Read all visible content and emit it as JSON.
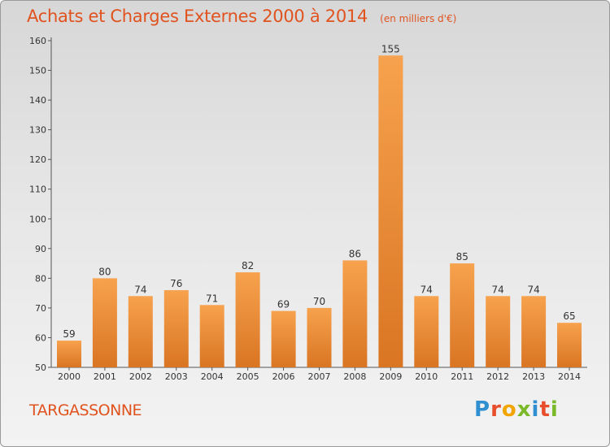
{
  "header": {
    "title": "Achats et Charges Externes 2000 à 2014",
    "subtitle": "(en milliers d'€)"
  },
  "footer": {
    "commune": "TARGASSONNE",
    "logo_text": "Proxiti",
    "logo_colors": [
      "#2f8fd0",
      "#e84e2c",
      "#f2a500",
      "#7ab929",
      "#2f8fd0",
      "#e84e2c",
      "#7ab929"
    ]
  },
  "colors": {
    "bar_top": "#f7a24e",
    "bar_bottom": "#d97523",
    "accent": "#e0531f",
    "text": "#333333"
  },
  "chart_data": {
    "type": "bar",
    "title": "Achats et Charges Externes 2000 à 2014",
    "subtitle": "(en milliers d'€)",
    "categories": [
      "2000",
      "2001",
      "2002",
      "2003",
      "2004",
      "2005",
      "2006",
      "2007",
      "2008",
      "2009",
      "2010",
      "2011",
      "2012",
      "2013",
      "2014"
    ],
    "values": [
      59,
      80,
      74,
      76,
      71,
      82,
      69,
      70,
      86,
      155,
      74,
      85,
      74,
      74,
      65
    ],
    "ylim": [
      50,
      160
    ],
    "yticks": [
      50,
      60,
      70,
      80,
      90,
      100,
      110,
      120,
      130,
      140,
      150,
      160
    ],
    "grid": false,
    "data_labels": true
  }
}
